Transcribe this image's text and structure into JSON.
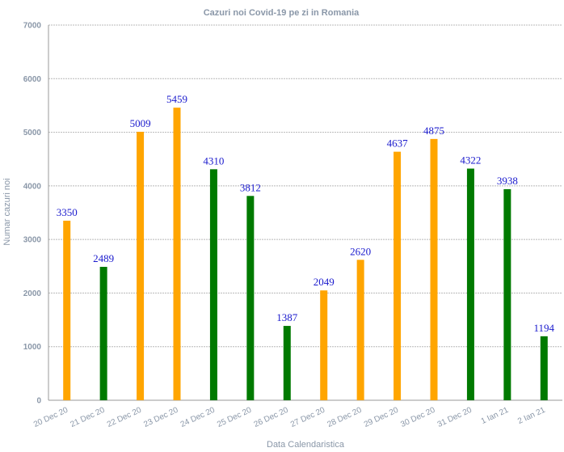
{
  "chart_data": {
    "type": "bar",
    "title": "Cazuri noi Covid-19 pe zi in Romania",
    "xlabel": "Data Calendaristica",
    "ylabel": "Numar cazuri noi",
    "ylim": [
      0,
      7000
    ],
    "yticks": [
      0,
      1000,
      2000,
      3000,
      4000,
      5000,
      6000,
      7000
    ],
    "categories": [
      "20 Dec 20",
      "21 Dec 20",
      "22 Dec 20",
      "23 Dec 20",
      "24 Dec 20",
      "25 Dec 20",
      "26 Dec 20",
      "27 Dec 20",
      "28 Dec 20",
      "29 Dec 20",
      "30 Dec 20",
      "31 Dec 20",
      "1 Ian 21",
      "2 Ian 21"
    ],
    "values": [
      3350,
      2489,
      5009,
      5459,
      4310,
      3812,
      1387,
      2049,
      2620,
      4637,
      4875,
      4322,
      3938,
      1194
    ],
    "bar_colors": [
      "#ffa500",
      "#007a00",
      "#ffa500",
      "#ffa500",
      "#007a00",
      "#007a00",
      "#007a00",
      "#ffa500",
      "#ffa500",
      "#ffa500",
      "#ffa500",
      "#007a00",
      "#007a00",
      "#007a00"
    ],
    "grid": true,
    "legend": "none"
  }
}
